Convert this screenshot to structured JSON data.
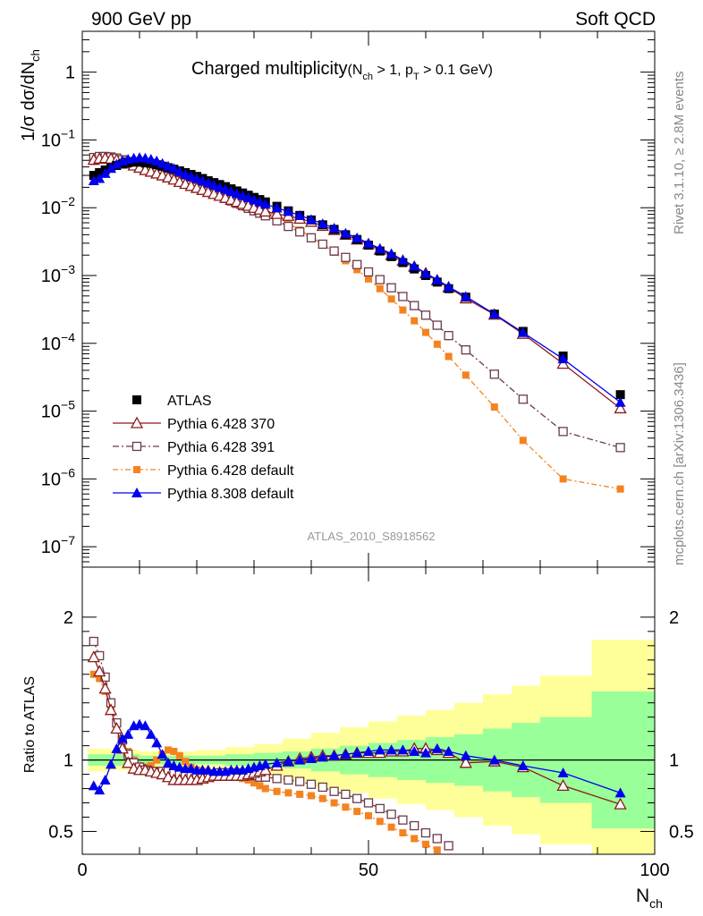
{
  "header": {
    "left": "900 GeV pp",
    "right": "Soft QCD"
  },
  "side_labels": {
    "rivet": "Rivet 3.1.10, ≥ 2.8M events",
    "mcplots": "mcplots.cern.ch [arXiv:1306.3436]"
  },
  "colors": {
    "atlas": "#000000",
    "py370": "#8b1a1a",
    "py391": "#6b3a4a",
    "pydefault": "#f58220",
    "py8": "#0000ee",
    "band_inner": "#99ff99",
    "band_outer": "#ffff99"
  },
  "chart_data": [
    {
      "type": "scatter",
      "title": "Charged multiplicity",
      "title_suffix": "(N_ch > 1, p_T > 0.1 GeV)",
      "title_suffix_parts": {
        "open": "(N",
        "sub1": "ch",
        "mid": " > 1, p",
        "sub2": "T",
        "close": " > 0.1 GeV)"
      },
      "ylabel": "1/σ dσ/dN",
      "ylabel_sub": "ch",
      "xlabel": "N",
      "xlabel_sub": "ch",
      "yscale": "log",
      "xlim": [
        0,
        100
      ],
      "ylim": [
        5e-08,
        4
      ],
      "yticks": [
        {
          "v": 1e-07,
          "base": "10",
          "exp": "−7"
        },
        {
          "v": 1e-06,
          "base": "10",
          "exp": "−6"
        },
        {
          "v": 1e-05,
          "base": "10",
          "exp": "−5"
        },
        {
          "v": 0.0001,
          "base": "10",
          "exp": "−4"
        },
        {
          "v": 0.001,
          "base": "10",
          "exp": "−3"
        },
        {
          "v": 0.01,
          "base": "10",
          "exp": "−2"
        },
        {
          "v": 0.1,
          "base": "10",
          "exp": "−1"
        },
        {
          "v": 1,
          "base": "1",
          "exp": ""
        }
      ],
      "watermark": "ATLAS_2010_S8918562",
      "legend_position": "lower-left",
      "x": [
        2,
        3,
        4,
        5,
        6,
        7,
        8,
        9,
        10,
        11,
        12,
        13,
        14,
        15,
        16,
        17,
        18,
        19,
        20,
        21,
        22,
        23,
        24,
        25,
        26,
        27,
        28,
        29,
        30,
        31,
        32,
        34,
        36,
        38,
        40,
        42,
        44,
        46,
        48,
        50,
        52,
        54,
        56,
        58,
        60,
        62,
        64,
        67,
        72,
        77,
        84,
        94
      ],
      "series": [
        {
          "name": "ATLAS",
          "marker": "filled-square",
          "values": [
            0.03,
            0.033,
            0.036,
            0.039,
            0.042,
            0.044,
            0.046,
            0.047,
            0.047,
            0.046,
            0.045,
            0.043,
            0.041,
            0.039,
            0.037,
            0.035,
            0.033,
            0.031,
            0.029,
            0.027,
            0.025,
            0.0235,
            0.022,
            0.0205,
            0.019,
            0.0177,
            0.0165,
            0.0153,
            0.0142,
            0.0132,
            0.0122,
            0.0105,
            0.009,
            0.0077,
            0.0066,
            0.0056,
            0.0048,
            0.004,
            0.0034,
            0.0028,
            0.0023,
            0.0019,
            0.00155,
            0.00125,
            0.001,
            0.0008,
            0.00064,
            0.00048,
            0.00027,
            0.00015,
            6.5e-05,
            1.75e-05
          ]
        },
        {
          "name": "Pythia 6.428 370",
          "marker": "open-triangle",
          "values": [
            0.051,
            0.053,
            0.054,
            0.053,
            0.051,
            0.048,
            0.045,
            0.042,
            0.039,
            0.036,
            0.034,
            0.032,
            0.03,
            0.028,
            0.026,
            0.024,
            0.0225,
            0.021,
            0.0196,
            0.0183,
            0.0171,
            0.016,
            0.015,
            0.014,
            0.0131,
            0.0122,
            0.0114,
            0.0107,
            0.01,
            0.0094,
            0.0088,
            0.0081,
            0.0076,
            0.0069,
            0.0062,
            0.0054,
            0.0047,
            0.004,
            0.0034,
            0.0029,
            0.0024,
            0.002,
            0.00165,
            0.00135,
            0.00108,
            0.00085,
            0.00067,
            0.00046,
            0.000265,
            0.000138,
            5e-05,
            1.1e-05
          ]
        },
        {
          "name": "Pythia 6.428 391",
          "marker": "open-square",
          "values": [
            0.055,
            0.057,
            0.057,
            0.056,
            0.054,
            0.051,
            0.048,
            0.045,
            0.042,
            0.039,
            0.036,
            0.033,
            0.031,
            0.029,
            0.027,
            0.025,
            0.0232,
            0.0215,
            0.02,
            0.0185,
            0.0172,
            0.016,
            0.0148,
            0.0137,
            0.0126,
            0.0116,
            0.0107,
            0.0098,
            0.009,
            0.0083,
            0.0076,
            0.0064,
            0.0053,
            0.0044,
            0.0036,
            0.0029,
            0.0023,
            0.00185,
            0.00145,
            0.00113,
            0.00087,
            0.00066,
            0.00049,
            0.00036,
            0.00026,
            0.000185,
            0.00013,
            8e-05,
            3.5e-05,
            1.5e-05,
            5e-06,
            2.9e-06
          ]
        },
        {
          "name": "Pythia 6.428 default",
          "marker": "filled-square-small",
          "values": [
            0.048,
            0.052,
            0.054,
            0.054,
            0.053,
            0.051,
            0.049,
            0.047,
            0.045,
            0.043,
            0.041,
            0.039,
            0.037,
            0.035,
            0.033,
            0.031,
            0.029,
            0.027,
            0.025,
            0.023,
            0.0213,
            0.0197,
            0.0182,
            0.0168,
            0.0155,
            0.0142,
            0.013,
            0.0119,
            0.0108,
            0.0098,
            0.0089,
            0.0073,
            0.0059,
            0.0047,
            0.0037,
            0.0029,
            0.0022,
            0.00165,
            0.00122,
            0.00089,
            0.00064,
            0.00045,
            0.00031,
            0.000215,
            0.000145,
            9.7e-05,
            6.4e-05,
            3.4e-05,
            1.15e-05,
            3.7e-06,
            1e-06,
            7.1e-07
          ]
        },
        {
          "name": "Pythia 8.308 default",
          "marker": "filled-triangle",
          "values": [
            0.025,
            0.027,
            0.032,
            0.038,
            0.044,
            0.049,
            0.052,
            0.054,
            0.055,
            0.054,
            0.052,
            0.049,
            0.045,
            0.041,
            0.038,
            0.034,
            0.031,
            0.029,
            0.027,
            0.025,
            0.0232,
            0.0216,
            0.02,
            0.0187,
            0.0174,
            0.0162,
            0.0151,
            0.0141,
            0.0131,
            0.0122,
            0.0113,
            0.0099,
            0.0088,
            0.0077,
            0.0067,
            0.0058,
            0.005,
            0.0042,
            0.0036,
            0.003,
            0.0025,
            0.0021,
            0.0017,
            0.00138,
            0.00108,
            0.00087,
            0.00068,
            0.00049,
            0.00027,
            0.000144,
            5.9e-05,
            1.35e-05
          ]
        }
      ]
    },
    {
      "type": "scatter",
      "ylabel": "Ratio to ATLAS",
      "xlim": [
        0,
        100
      ],
      "ylim": [
        0.34,
        2.35
      ],
      "yticks": [
        0.5,
        1,
        2
      ],
      "yticks_labels": [
        "0.5",
        "1",
        "2"
      ],
      "xticks": [
        0,
        50,
        100
      ],
      "xticks_labels": [
        "0",
        "50",
        "100"
      ],
      "band_edges": [
        1,
        5,
        10,
        15,
        20,
        25,
        30,
        35,
        40,
        45,
        50,
        55,
        60,
        65,
        70,
        75,
        80,
        89,
        100
      ],
      "band_inner": [
        0.04,
        0.04,
        0.03,
        0.03,
        0.03,
        0.04,
        0.05,
        0.06,
        0.08,
        0.1,
        0.12,
        0.14,
        0.16,
        0.18,
        0.22,
        0.26,
        0.3,
        0.48
      ],
      "band_outer": [
        0.08,
        0.07,
        0.06,
        0.06,
        0.07,
        0.09,
        0.11,
        0.15,
        0.19,
        0.23,
        0.27,
        0.31,
        0.35,
        0.4,
        0.46,
        0.52,
        0.59,
        0.84
      ],
      "x": [
        2,
        3,
        4,
        5,
        6,
        7,
        8,
        9,
        10,
        11,
        12,
        13,
        14,
        15,
        16,
        17,
        18,
        19,
        20,
        21,
        22,
        23,
        24,
        25,
        26,
        27,
        28,
        29,
        30,
        31,
        32,
        34,
        36,
        38,
        40,
        42,
        44,
        46,
        48,
        50,
        52,
        54,
        56,
        58,
        60,
        62,
        64,
        67,
        72,
        77,
        84,
        94
      ],
      "series": [
        {
          "name": "Pythia 6.428 370",
          "values": [
            1.72,
            1.62,
            1.5,
            1.35,
            1.22,
            1.08,
            0.98,
            0.94,
            0.93,
            0.93,
            0.92,
            0.91,
            0.9,
            0.88,
            0.86,
            0.86,
            0.86,
            0.86,
            0.86,
            0.87,
            0.88,
            0.89,
            0.89,
            0.89,
            0.89,
            0.89,
            0.89,
            0.9,
            0.91,
            0.92,
            0.93,
            0.96,
            0.99,
            1.01,
            1.02,
            1.03,
            1.03,
            1.04,
            1.05,
            1.05,
            1.05,
            1.06,
            1.06,
            1.08,
            1.08,
            1.07,
            1.05,
            0.98,
            0.99,
            0.95,
            0.82,
            0.69
          ]
        },
        {
          "name": "Pythia 6.428 391",
          "values": [
            1.83,
            1.73,
            1.58,
            1.4,
            1.26,
            1.14,
            1.04,
            0.98,
            0.95,
            0.93,
            0.92,
            0.92,
            0.92,
            0.92,
            0.91,
            0.9,
            0.89,
            0.89,
            0.9,
            0.9,
            0.9,
            0.9,
            0.91,
            0.91,
            0.91,
            0.91,
            0.9,
            0.89,
            0.89,
            0.88,
            0.88,
            0.87,
            0.86,
            0.85,
            0.83,
            0.81,
            0.78,
            0.76,
            0.73,
            0.7,
            0.66,
            0.62,
            0.58,
            0.54,
            0.49,
            0.45,
            0.4
          ]
        },
        {
          "name": "Pythia 6.428 default",
          "values": [
            1.6,
            1.57,
            1.48,
            1.37,
            1.25,
            1.14,
            1.06,
            1.0,
            0.96,
            0.95,
            0.96,
            1.0,
            1.04,
            1.07,
            1.06,
            1.03,
            0.99,
            0.95,
            0.93,
            0.92,
            0.91,
            0.91,
            0.9,
            0.9,
            0.89,
            0.88,
            0.87,
            0.86,
            0.84,
            0.82,
            0.8,
            0.78,
            0.77,
            0.76,
            0.75,
            0.73,
            0.7,
            0.67,
            0.64,
            0.61,
            0.57,
            0.53,
            0.49,
            0.45,
            0.41,
            0.37
          ]
        },
        {
          "name": "Pythia 8.308 default",
          "values": [
            0.82,
            0.79,
            0.86,
            0.97,
            1.08,
            1.15,
            1.18,
            1.24,
            1.25,
            1.24,
            1.18,
            1.12,
            1.04,
            0.98,
            0.96,
            0.95,
            0.94,
            0.94,
            0.93,
            0.93,
            0.93,
            0.92,
            0.92,
            0.92,
            0.93,
            0.93,
            0.93,
            0.94,
            0.95,
            0.96,
            0.97,
            0.98,
            0.99,
            1.0,
            1.01,
            1.02,
            1.03,
            1.04,
            1.05,
            1.06,
            1.07,
            1.07,
            1.07,
            1.06,
            1.05,
            1.08,
            1.06,
            1.03,
            1.0,
            0.96,
            0.91,
            0.77
          ]
        }
      ]
    }
  ]
}
